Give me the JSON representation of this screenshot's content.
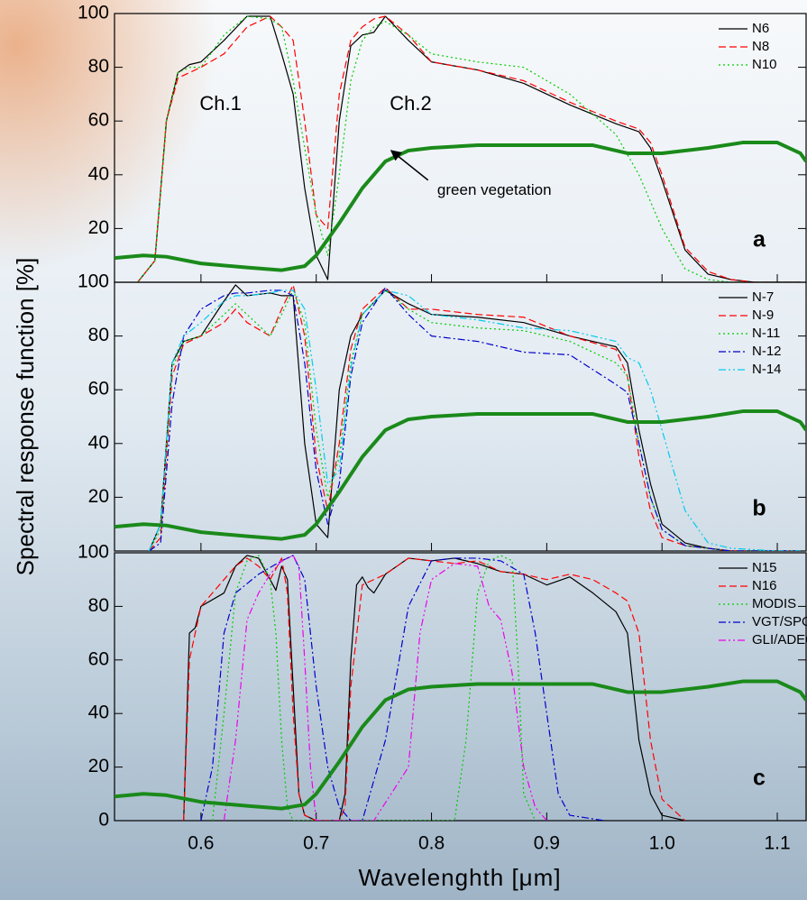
{
  "chart_data": [
    {
      "type": "line",
      "panel_label": "a",
      "xlim": [
        0.525,
        1.125
      ],
      "ylim": [
        0,
        100
      ],
      "yticks": [
        20,
        40,
        60,
        80,
        100
      ],
      "legend": "upper right",
      "annotations": [
        "Ch.1",
        "Ch.2",
        "green vegetation"
      ],
      "x": [
        0.545,
        0.56,
        0.57,
        0.58,
        0.59,
        0.6,
        0.62,
        0.64,
        0.66,
        0.67,
        0.68,
        0.69,
        0.7,
        0.71,
        0.72,
        0.73,
        0.74,
        0.75,
        0.76,
        0.78,
        0.8,
        0.84,
        0.88,
        0.92,
        0.96,
        0.98,
        0.99,
        1.0,
        1.02,
        1.04,
        1.06,
        1.08,
        1.1,
        1.12
      ],
      "series": [
        {
          "name": "N6",
          "color": "#000000",
          "line_style": "solid",
          "values": [
            0,
            8,
            60,
            78,
            81,
            82,
            90,
            99,
            99,
            85,
            70,
            35,
            10,
            1,
            60,
            88,
            92,
            93,
            99,
            90,
            82,
            79,
            74,
            66,
            59,
            56,
            50,
            38,
            12,
            3,
            1,
            0,
            0,
            0
          ]
        },
        {
          "name": "N8",
          "color": "#ff0000",
          "line_style": "dashed",
          "values": [
            0,
            8,
            60,
            76,
            78,
            80,
            85,
            95,
            99,
            95,
            90,
            60,
            25,
            20,
            70,
            90,
            95,
            98,
            99,
            92,
            82,
            79,
            75,
            67,
            60,
            57,
            52,
            40,
            13,
            4,
            1,
            0,
            0,
            0
          ]
        },
        {
          "name": "N10",
          "color": "#00cc00",
          "line_style": "dotted",
          "values": [
            0,
            8,
            60,
            78,
            80,
            80,
            92,
            99,
            98,
            95,
            75,
            50,
            25,
            10,
            40,
            75,
            90,
            95,
            97,
            92,
            85,
            82,
            80,
            70,
            55,
            40,
            30,
            20,
            5,
            1,
            0,
            0,
            0,
            0
          ]
        }
      ],
      "reference": {
        "color": "#1a8a1a",
        "x": [
          0.525,
          0.55,
          0.57,
          0.6,
          0.64,
          0.67,
          0.69,
          0.7,
          0.72,
          0.74,
          0.76,
          0.78,
          0.8,
          0.84,
          0.9,
          0.94,
          0.97,
          1.0,
          1.04,
          1.07,
          1.1,
          1.12,
          1.125
        ],
        "values": [
          9,
          10,
          9.5,
          7,
          5.5,
          4.5,
          6,
          10,
          22,
          35,
          45,
          49,
          50,
          51,
          51,
          51,
          48,
          48,
          50,
          52,
          52,
          48,
          45
        ]
      }
    },
    {
      "type": "line",
      "panel_label": "b",
      "xlim": [
        0.525,
        1.125
      ],
      "ylim": [
        0,
        100
      ],
      "yticks": [
        20,
        40,
        60,
        80,
        100
      ],
      "legend": "upper right",
      "ylabel": "Spectral response function [%]",
      "x": [
        0.555,
        0.565,
        0.575,
        0.585,
        0.6,
        0.62,
        0.63,
        0.64,
        0.66,
        0.67,
        0.68,
        0.69,
        0.7,
        0.71,
        0.72,
        0.73,
        0.74,
        0.76,
        0.78,
        0.8,
        0.84,
        0.88,
        0.92,
        0.96,
        0.97,
        0.98,
        0.99,
        1.0,
        1.02,
        1.04,
        1.06,
        1.1,
        1.12
      ],
      "series": [
        {
          "name": "N-7",
          "color": "#000000",
          "line_style": "solid",
          "values": [
            0,
            10,
            70,
            78,
            80,
            93,
            99,
            95,
            96,
            95,
            95,
            40,
            10,
            5,
            60,
            80,
            88,
            97,
            92,
            88,
            87,
            85,
            80,
            76,
            70,
            45,
            25,
            10,
            3,
            1,
            0,
            0,
            0
          ]
        },
        {
          "name": "N-9",
          "color": "#ff0000",
          "line_style": "dashed",
          "values": [
            0,
            5,
            65,
            77,
            80,
            85,
            90,
            85,
            80,
            90,
            99,
            80,
            35,
            15,
            40,
            75,
            90,
            98,
            90,
            90,
            88,
            87,
            80,
            75,
            65,
            35,
            15,
            5,
            2,
            1,
            0,
            0,
            0
          ]
        },
        {
          "name": "N-11",
          "color": "#00cc00",
          "line_style": "dotted",
          "values": [
            0,
            8,
            68,
            78,
            80,
            88,
            92,
            88,
            80,
            88,
            97,
            85,
            45,
            20,
            35,
            70,
            88,
            97,
            90,
            85,
            83,
            82,
            78,
            70,
            65,
            40,
            20,
            8,
            2,
            1,
            0,
            0,
            0
          ]
        },
        {
          "name": "N-12",
          "color": "#0000cc",
          "line_style": "dashdot",
          "values": [
            0,
            3,
            55,
            80,
            90,
            95,
            96,
            96,
            97,
            97,
            95,
            70,
            30,
            10,
            25,
            65,
            85,
            98,
            88,
            80,
            78,
            74,
            73,
            62,
            59,
            40,
            20,
            8,
            2,
            1,
            0,
            0,
            0
          ]
        },
        {
          "name": "N-14",
          "color": "#00ccee",
          "line_style": "dashdotdot",
          "values": [
            0,
            10,
            70,
            80,
            85,
            93,
            95,
            95,
            96,
            97,
            97,
            90,
            60,
            25,
            30,
            68,
            88,
            97,
            95,
            88,
            86,
            83,
            82,
            78,
            72,
            70,
            60,
            45,
            15,
            3,
            1,
            0,
            0
          ]
        }
      ],
      "reference": {
        "color": "#1a8a1a",
        "x": [
          0.525,
          0.55,
          0.57,
          0.6,
          0.64,
          0.67,
          0.69,
          0.7,
          0.72,
          0.74,
          0.76,
          0.78,
          0.8,
          0.84,
          0.9,
          0.94,
          0.97,
          1.0,
          1.04,
          1.07,
          1.1,
          1.12,
          1.125
        ],
        "values": [
          9,
          10,
          9.5,
          7,
          5.5,
          4.5,
          6,
          10,
          22,
          35,
          45,
          49,
          50,
          51,
          51,
          51,
          48,
          48,
          50,
          52,
          52,
          48,
          45
        ]
      }
    },
    {
      "type": "line",
      "panel_label": "c",
      "xlim": [
        0.525,
        1.125
      ],
      "ylim": [
        0,
        100
      ],
      "yticks": [
        0,
        20,
        40,
        60,
        80,
        100
      ],
      "legend": "upper right",
      "xlabel": "Wavelenghth [μm]",
      "xticks": [
        0.6,
        0.7,
        0.8,
        0.9,
        {
          "value": 1.0,
          "label": "1.0"
        },
        1.1
      ],
      "series": [
        {
          "name": "N15",
          "color": "#000000",
          "line_style": "solid",
          "x": [
            0.585,
            0.59,
            0.595,
            0.6,
            0.62,
            0.63,
            0.64,
            0.65,
            0.66,
            0.665,
            0.67,
            0.675,
            0.68,
            0.685,
            0.69,
            0.7,
            0.72,
            0.725,
            0.73,
            0.735,
            0.74,
            0.745,
            0.75,
            0.76,
            0.78,
            0.8,
            0.82,
            0.84,
            0.86,
            0.88,
            0.9,
            0.92,
            0.94,
            0.96,
            0.97,
            0.98,
            0.99,
            1.0,
            1.02
          ],
          "values": [
            0,
            70,
            72,
            80,
            85,
            95,
            99,
            98,
            90,
            86,
            95,
            90,
            50,
            10,
            2,
            0,
            0,
            10,
            60,
            88,
            91,
            87,
            85,
            92,
            98,
            97,
            98,
            96,
            93,
            92,
            88,
            91,
            85,
            78,
            70,
            30,
            10,
            2,
            0
          ]
        },
        {
          "name": "N16",
          "color": "#ff0000",
          "line_style": "dashed",
          "x": [
            0.585,
            0.59,
            0.6,
            0.62,
            0.63,
            0.64,
            0.65,
            0.66,
            0.67,
            0.675,
            0.68,
            0.685,
            0.69,
            0.7,
            0.72,
            0.725,
            0.73,
            0.74,
            0.76,
            0.78,
            0.8,
            0.82,
            0.84,
            0.86,
            0.88,
            0.9,
            0.92,
            0.94,
            0.96,
            0.97,
            0.98,
            0.99,
            1.0,
            1.02
          ],
          "values": [
            0,
            60,
            80,
            90,
            95,
            98,
            95,
            90,
            98,
            85,
            40,
            10,
            2,
            0,
            0,
            5,
            50,
            88,
            92,
            98,
            97,
            96,
            97,
            93,
            92,
            90,
            92,
            90,
            85,
            82,
            70,
            30,
            8,
            0
          ]
        },
        {
          "name": "MODIS",
          "color": "#00cc00",
          "line_style": "dotted",
          "x": [
            0.61,
            0.62,
            0.63,
            0.64,
            0.65,
            0.66,
            0.665,
            0.67,
            0.675,
            0.68,
            0.82,
            0.83,
            0.84,
            0.85,
            0.86,
            0.87,
            0.875,
            0.88,
            0.89
          ],
          "values": [
            0,
            40,
            85,
            97,
            99,
            90,
            70,
            30,
            5,
            0,
            0,
            30,
            85,
            97,
            99,
            97,
            60,
            10,
            0
          ]
        },
        {
          "name": "VGT/SPOT",
          "color": "#0000cc",
          "line_style": "dashdot",
          "x": [
            0.6,
            0.61,
            0.62,
            0.63,
            0.65,
            0.67,
            0.68,
            0.69,
            0.7,
            0.71,
            0.72,
            0.73,
            0.74,
            0.76,
            0.78,
            0.8,
            0.82,
            0.84,
            0.86,
            0.88,
            0.89,
            0.9,
            0.91,
            0.92,
            0.95
          ],
          "values": [
            0,
            20,
            70,
            85,
            92,
            97,
            99,
            90,
            50,
            20,
            5,
            0,
            0,
            30,
            80,
            97,
            98,
            98,
            97,
            92,
            70,
            40,
            10,
            2,
            0
          ]
        },
        {
          "name": "GLI/ADEOS-II",
          "color": "#ee00ee",
          "line_style": "dashdotdot",
          "x": [
            0.62,
            0.63,
            0.64,
            0.65,
            0.66,
            0.67,
            0.68,
            0.685,
            0.69,
            0.695,
            0.7,
            0.75,
            0.78,
            0.79,
            0.8,
            0.82,
            0.84,
            0.85,
            0.86,
            0.87,
            0.88,
            0.89,
            0.9
          ],
          "values": [
            0,
            30,
            75,
            85,
            92,
            97,
            99,
            95,
            60,
            20,
            0,
            0,
            20,
            70,
            90,
            96,
            95,
            80,
            75,
            55,
            20,
            5,
            0
          ]
        }
      ],
      "reference": {
        "color": "#1a8a1a",
        "x": [
          0.525,
          0.55,
          0.57,
          0.6,
          0.64,
          0.67,
          0.69,
          0.7,
          0.72,
          0.74,
          0.76,
          0.78,
          0.8,
          0.84,
          0.9,
          0.94,
          0.97,
          1.0,
          1.04,
          1.07,
          1.1,
          1.12,
          1.125
        ],
        "values": [
          9,
          10,
          9.5,
          7,
          5.5,
          4.5,
          6,
          10,
          22,
          35,
          45,
          49,
          50,
          51,
          51,
          51,
          48,
          48,
          50,
          52,
          52,
          48,
          45
        ]
      }
    }
  ]
}
